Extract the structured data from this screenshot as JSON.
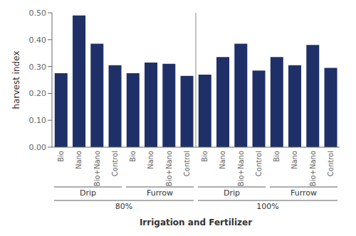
{
  "chart_data": {
    "type": "bar",
    "categories": [
      "Bio",
      "Nano",
      "Bio+Nano",
      "Control",
      "Bio",
      "Nano",
      "Bio+Nano",
      "Control",
      "Bio",
      "Nano",
      "Bio+Nano",
      "Control",
      "Bio",
      "Nano",
      "Bio+Nano",
      "Control"
    ],
    "values": [
      0.275,
      0.49,
      0.385,
      0.305,
      0.275,
      0.315,
      0.31,
      0.265,
      0.27,
      0.335,
      0.385,
      0.285,
      0.335,
      0.305,
      0.38,
      0.295
    ],
    "color": "#1f3068",
    "group_labels": [
      "Drip",
      "Furrow",
      "Drip",
      "Furrow"
    ],
    "section_labels": [
      "80%",
      "100%"
    ],
    "xlabel": "Irrigation and Fertilizer",
    "ylabel": "harvest index",
    "ylim": [
      0.0,
      0.5
    ],
    "yticks": [
      {
        "value": 0.0,
        "label": "0.00"
      },
      {
        "value": 0.1,
        "label": "0.10"
      },
      {
        "value": 0.2,
        "label": "0.20"
      },
      {
        "value": 0.3,
        "label": "0.30"
      },
      {
        "value": 0.4,
        "label": "0.40"
      },
      {
        "value": 0.5,
        "label": "0.50"
      }
    ],
    "grid": false
  }
}
